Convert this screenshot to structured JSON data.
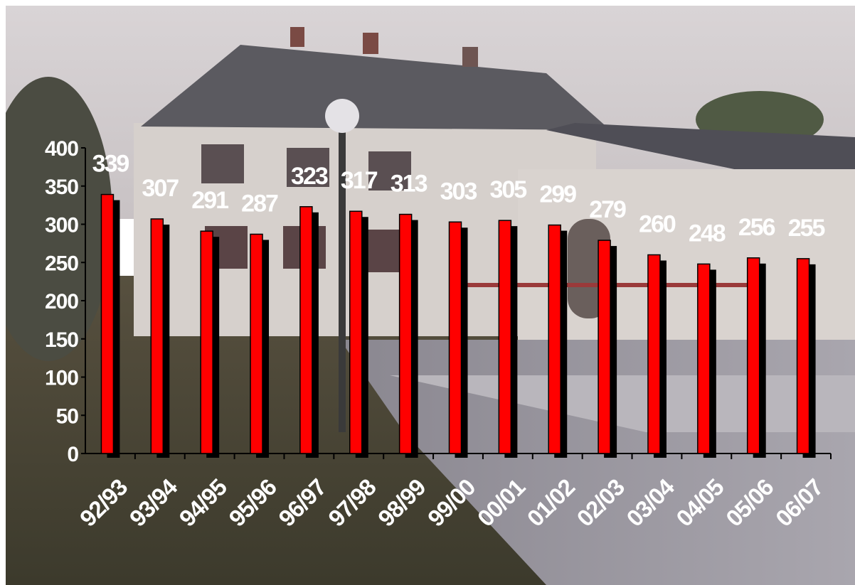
{
  "chart_data": {
    "type": "bar",
    "categories": [
      "92/93",
      "93/94",
      "94/95",
      "95/96",
      "96/97",
      "97/98",
      "98/99",
      "99/00",
      "00/01",
      "01/02",
      "02/03",
      "03/04",
      "04/05",
      "05/06",
      "06/07"
    ],
    "values": [
      339,
      307,
      291,
      287,
      323,
      317,
      313,
      303,
      305,
      299,
      279,
      260,
      248,
      256,
      255
    ],
    "ylim": [
      0,
      400
    ],
    "yticks": [
      0,
      50,
      100,
      150,
      200,
      250,
      300,
      350,
      400
    ],
    "grid": false,
    "legend": "none",
    "bar_color": "#ff0000",
    "shadow_color": "#000000",
    "label_color": "#ffffff",
    "background": "photograph of a two-storey building with a hipped roof"
  }
}
